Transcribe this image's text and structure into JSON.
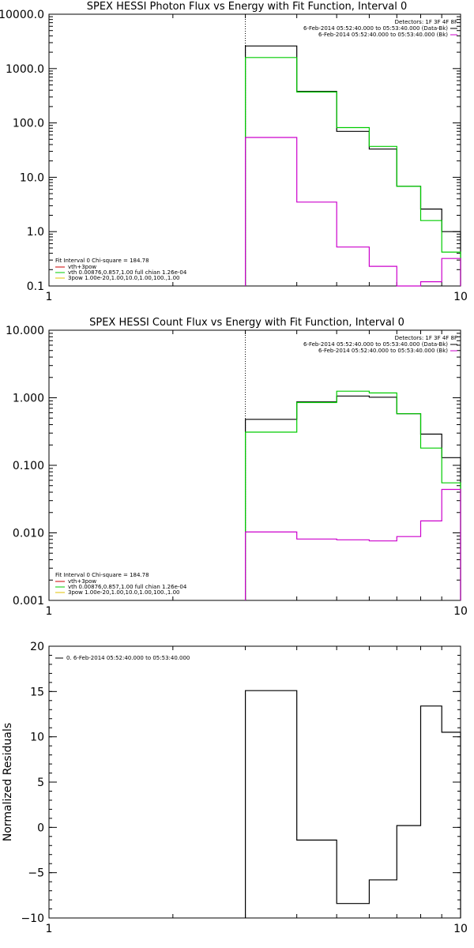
{
  "chart_data": [
    {
      "type": "line",
      "title": "SPEX HESSI Photon Flux vs Energy with Fit Function, Interval 0",
      "xlabel": "",
      "ylabel": "",
      "xscale": "log",
      "yscale": "log",
      "xlim": [
        1,
        10
      ],
      "ylim": [
        0.1,
        10000
      ],
      "x_ticks": [
        "1",
        "10"
      ],
      "y_ticks": [
        "10000.0",
        "1000.0",
        "100.0",
        "10.0",
        "1.0",
        "0.1"
      ],
      "y_tick_values": [
        10000,
        1000,
        100,
        10,
        1,
        0.1
      ],
      "vline_x": 3,
      "bin_edges": [
        3,
        4,
        5,
        6,
        7,
        8,
        9,
        10
      ],
      "series": [
        {
          "values": [
            2600,
            380,
            70,
            33,
            6.8,
            2.6,
            1.0
          ],
          "color": "#000000"
        },
        {
          "values": [
            1600,
            370,
            82,
            37,
            6.8,
            1.6,
            0.42
          ],
          "color": "#00cc00"
        },
        {
          "values": [
            54,
            3.5,
            0.52,
            0.23,
            0.095,
            0.12,
            0.32
          ],
          "color": "#cc00cc"
        }
      ],
      "legend_top": {
        "header": "Detectors: 1F 3F 4F 8F",
        "items": [
          {
            "text": "6-Feb-2014 05:52:40.000 to 05:53:40.000 (Data-Bk)",
            "color": "#000000"
          },
          {
            "text": "6-Feb-2014 05:52:40.000 to 05:53:40.000 (Bk)",
            "color": "#cc00cc"
          }
        ]
      },
      "legend_fit": {
        "header": "Fit Interval  0   Chi-square = 184.78",
        "items": [
          {
            "text": "vth+3pow",
            "color": "#cc0000"
          },
          {
            "text": "vth 0.00876,0.857,1.00  full chian 1.26e-04",
            "color": "#00cc00"
          },
          {
            "text": "3pow 1.00e-20,1.00,10.0,1.00,100.,1.00",
            "color": "#e0c000"
          }
        ]
      }
    },
    {
      "type": "line",
      "title": "SPEX HESSI Count Flux vs Energy with Fit Function, Interval 0",
      "xlabel": "",
      "ylabel": "",
      "xscale": "log",
      "yscale": "log",
      "xlim": [
        1,
        10
      ],
      "ylim": [
        0.001,
        10
      ],
      "x_ticks": [
        "1",
        "10"
      ],
      "y_ticks": [
        "10.000",
        "1.000",
        "0.100",
        "0.010",
        "0.001"
      ],
      "y_tick_values": [
        10,
        1,
        0.1,
        0.01,
        0.001
      ],
      "vline_x": 3,
      "bin_edges": [
        3,
        4,
        5,
        6,
        7,
        8,
        9,
        10
      ],
      "series": [
        {
          "values": [
            0.48,
            0.87,
            1.06,
            1.02,
            0.58,
            0.29,
            0.13
          ],
          "color": "#000000"
        },
        {
          "values": [
            0.31,
            0.85,
            1.25,
            1.18,
            0.58,
            0.18,
            0.055
          ],
          "color": "#00cc00"
        },
        {
          "values": [
            0.0103,
            0.0081,
            0.0079,
            0.0076,
            0.0088,
            0.015,
            0.044
          ],
          "color": "#cc00cc"
        }
      ],
      "legend_top": {
        "header": "Detectors: 1F 3F 4F 8F",
        "items": [
          {
            "text": "6-Feb-2014 05:52:40.000 to 05:53:40.000 (Data-Bk)",
            "color": "#000000"
          },
          {
            "text": "6-Feb-2014 05:52:40.000 to 05:53:40.000 (Bk)",
            "color": "#cc00cc"
          }
        ]
      },
      "legend_fit": {
        "header": "Fit Interval  0   Chi-square = 184.78",
        "items": [
          {
            "text": "vth+3pow",
            "color": "#cc0000"
          },
          {
            "text": "vth 0.00876,0.857,1.00  full chian 1.26e-04",
            "color": "#00cc00"
          },
          {
            "text": "3pow 1.00e-20,1.00,10.0,1.00,100.,1.00",
            "color": "#e0c000"
          }
        ]
      }
    },
    {
      "type": "line",
      "title": "",
      "xlabel": "",
      "ylabel": "Normalized Residuals",
      "xscale": "log",
      "yscale": "linear",
      "xlim": [
        1,
        10
      ],
      "ylim": [
        -10,
        20
      ],
      "x_ticks": [
        "1",
        "10"
      ],
      "y_ticks": [
        "20",
        "15",
        "10",
        "5",
        "0",
        "−5",
        "−10"
      ],
      "y_tick_values": [
        20,
        15,
        10,
        5,
        0,
        -5,
        -10
      ],
      "bin_edges": [
        3,
        4,
        5,
        6,
        7,
        8,
        9,
        10
      ],
      "series": [
        {
          "values": [
            15.1,
            -1.4,
            -8.4,
            -5.8,
            0.2,
            13.4,
            10.5
          ],
          "color": "#000000"
        }
      ],
      "legend_top": {
        "header": "",
        "items": [
          {
            "text": "0.  6-Feb-2014 05:52:40.000 to 05:53:40.000",
            "color": "#000000"
          }
        ]
      }
    }
  ]
}
